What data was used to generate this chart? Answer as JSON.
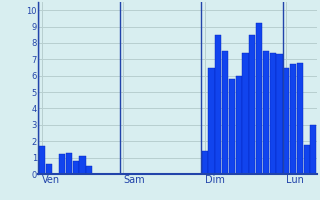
{
  "bar_values": [
    1.7,
    0.6,
    0.0,
    1.2,
    1.3,
    0.8,
    1.1,
    0.5,
    0.0,
    0.0,
    0.0,
    0.0,
    0.0,
    0.0,
    0.0,
    0.0,
    0.0,
    0.0,
    0.0,
    0.0,
    0.0,
    0.0,
    0.0,
    0.0,
    1.4,
    6.5,
    8.5,
    7.5,
    5.8,
    6.0,
    7.4,
    8.5,
    9.2,
    7.5,
    7.4,
    7.3,
    6.5,
    6.7,
    6.8,
    1.8,
    3.0
  ],
  "day_labels": [
    "Ven",
    "Sam",
    "Dim",
    "Lun"
  ],
  "day_positions": [
    0,
    12,
    24,
    36
  ],
  "yticks": [
    0,
    1,
    2,
    3,
    4,
    5,
    6,
    7,
    8,
    9,
    10
  ],
  "ylim": [
    0,
    10.5
  ],
  "bar_color": "#1144ee",
  "bar_edge_color": "#0022bb",
  "bg_color": "#d8eef0",
  "grid_color": "#b8cfd0",
  "axis_color": "#2244aa",
  "label_color": "#2244aa",
  "vline_color": "#2244aa"
}
